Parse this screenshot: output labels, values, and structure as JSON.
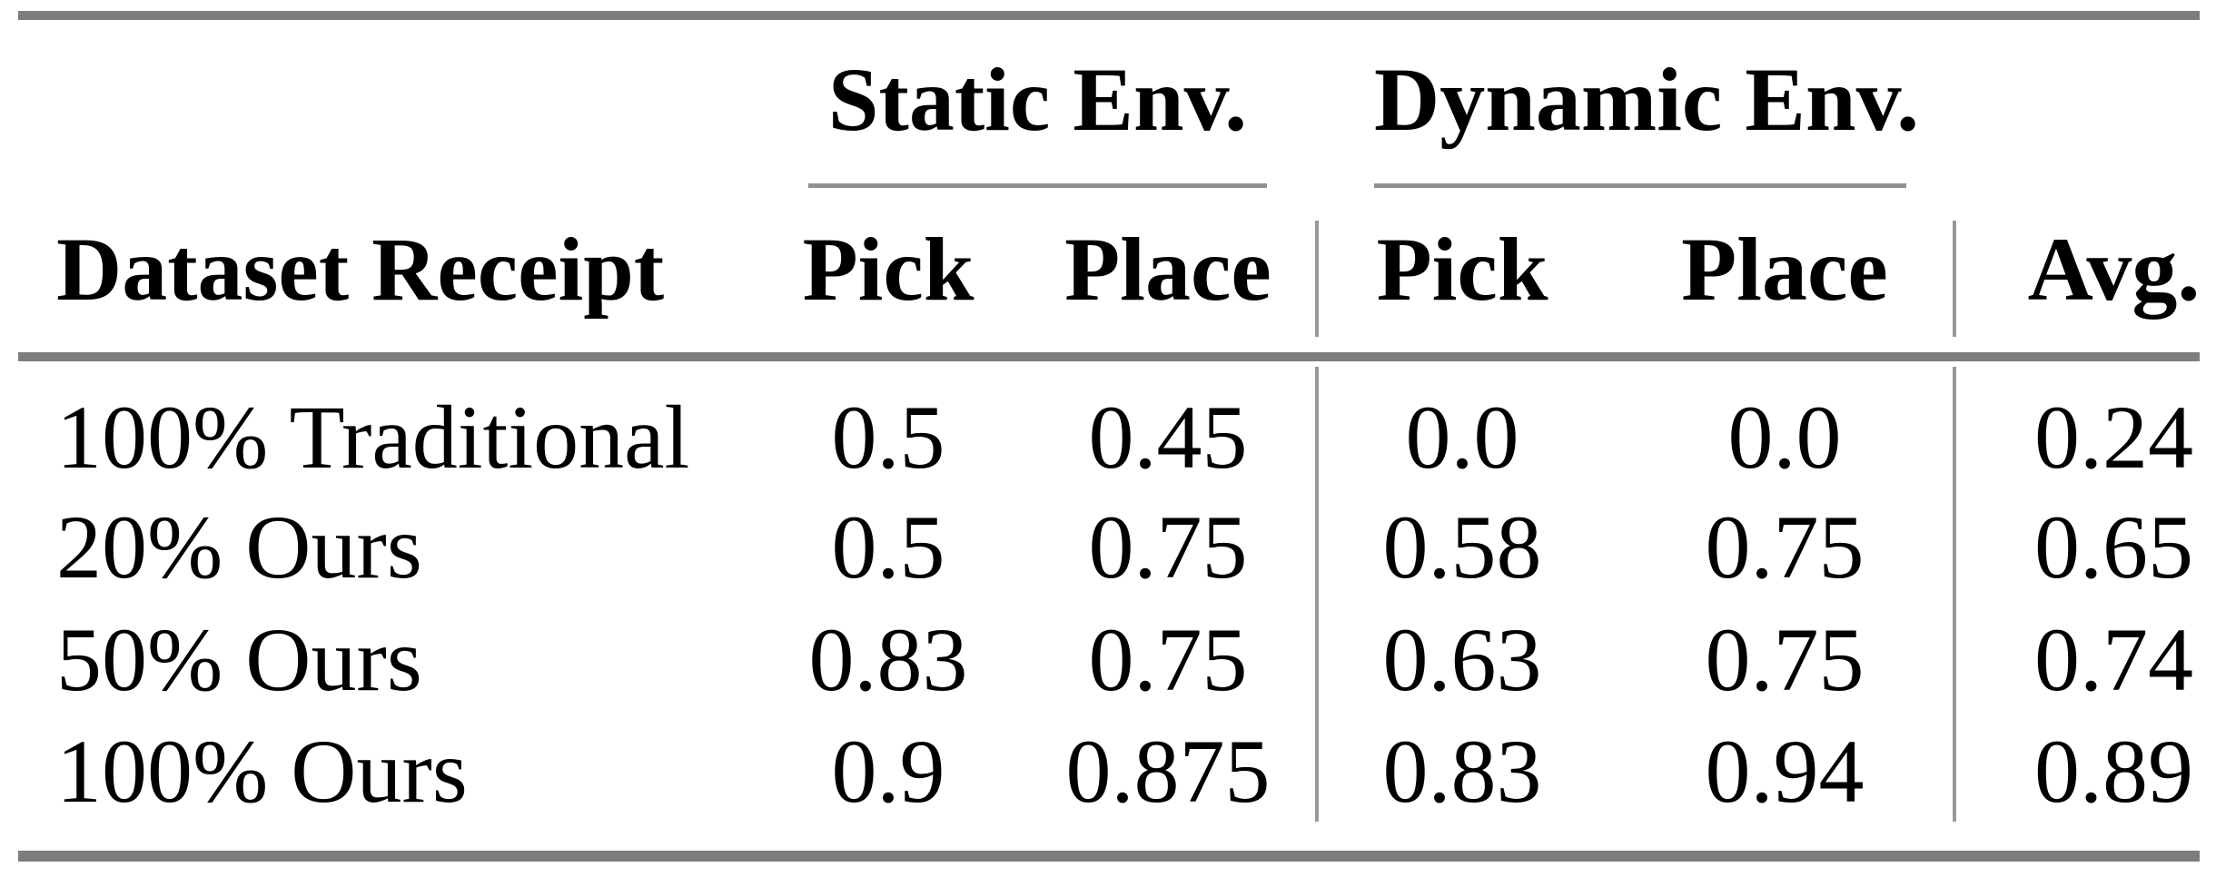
{
  "table": {
    "title_semantic": "Pick-and-place success rates table",
    "column_groups": {
      "static": {
        "label": "Static Env."
      },
      "dynamic": {
        "label": "Dynamic Env."
      }
    },
    "columns": {
      "dataset": "Dataset Receipt",
      "static_pick": "Pick",
      "static_place": "Place",
      "dynamic_pick": "Pick",
      "dynamic_place": "Place",
      "avg": "Avg."
    },
    "rows": [
      {
        "dataset": "100% Traditional",
        "static_pick": "0.5",
        "static_place": "0.45",
        "dynamic_pick": "0.0",
        "dynamic_place": "0.0",
        "avg": "0.24"
      },
      {
        "dataset": "20% Ours",
        "static_pick": "0.5",
        "static_place": "0.75",
        "dynamic_pick": "0.58",
        "dynamic_place": "0.75",
        "avg": "0.65"
      },
      {
        "dataset": "50% Ours",
        "static_pick": "0.83",
        "static_place": "0.75",
        "dynamic_pick": "0.63",
        "dynamic_place": "0.75",
        "avg": "0.74"
      },
      {
        "dataset": "100% Ours",
        "static_pick": "0.9",
        "static_place": "0.875",
        "dynamic_pick": "0.83",
        "dynamic_place": "0.94",
        "avg": "0.89"
      }
    ]
  },
  "colors": {
    "heavy_rule": "#7d7d7d",
    "light_rule": "#8f8f8f",
    "separator": "#999999",
    "text": "#000000",
    "background": "#ffffff"
  }
}
